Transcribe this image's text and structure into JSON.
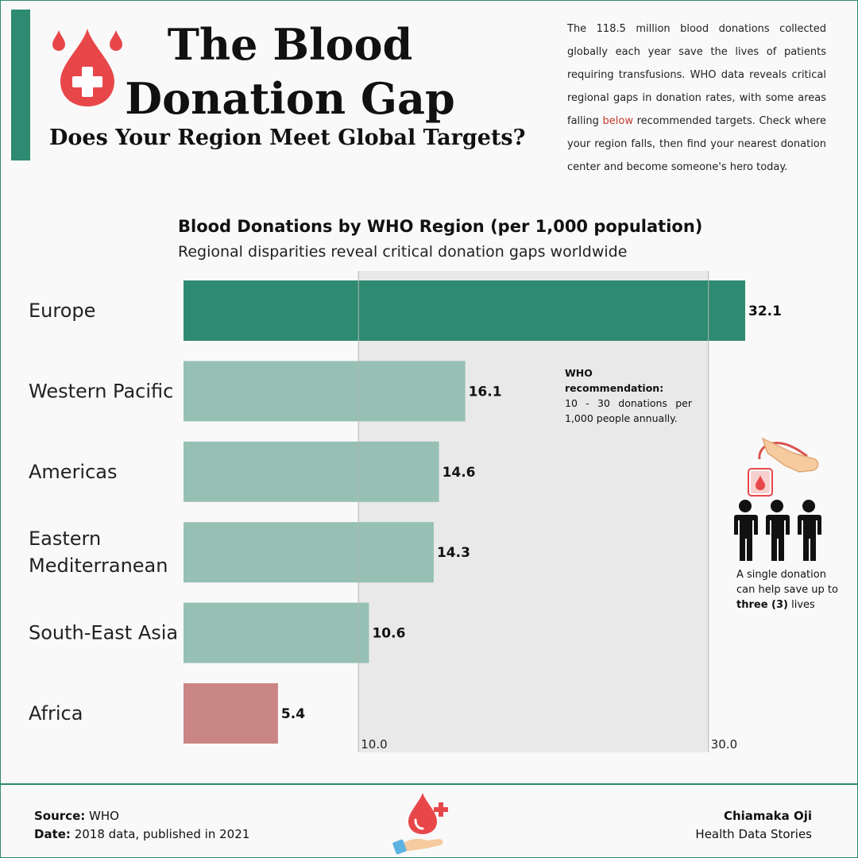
{
  "header": {
    "title_line1": "The Blood",
    "title_line2": "Donation Gap",
    "subtitle": "Does Your Region Meet Global Targets?",
    "intro_before": "The 118.5 million blood donations collected globally each year save the lives of patients requiring transfusions. WHO data reveals critical regional gaps in donation rates, with some areas falling ",
    "intro_highlight": "below",
    "intro_after": " recommended targets. Check where your region falls, then find your nearest donation center and become someone's hero today."
  },
  "colors": {
    "brand_green": "#2e8a70",
    "light_green": "#96c0b4",
    "africa_red": "#c98684",
    "blood_red": "#e8474a",
    "band_gray": "#e9e9e9"
  },
  "chart_data": {
    "type": "bar",
    "orientation": "horizontal",
    "title": "Blood Donations by WHO Region (per 1,000 population)",
    "subtitle": "Regional disparities reveal critical donation gaps worldwide",
    "categories": [
      "Europe",
      "Western Pacific",
      "Americas",
      "Eastern Mediterranean",
      "South-East Asia",
      "Africa"
    ],
    "category_lines": [
      [
        "Europe"
      ],
      [
        "Western Pacific"
      ],
      [
        "Americas"
      ],
      [
        "Eastern",
        "Mediterranean"
      ],
      [
        "South-East Asia"
      ],
      [
        "Africa"
      ]
    ],
    "values": [
      32.1,
      16.1,
      14.6,
      14.3,
      10.6,
      5.4
    ],
    "value_labels": [
      "32.1",
      "16.1",
      "14.6",
      "14.3",
      "10.6",
      "5.4"
    ],
    "xlim": [
      0,
      32.1
    ],
    "recommended_range": [
      10,
      30
    ],
    "range_tick_labels": [
      "10.0",
      "30.0"
    ],
    "annotation_title": "WHO recommendation:",
    "annotation_text": "10 - 30 donations per 1,000 people annually."
  },
  "sidebar_note": {
    "line_before": "A single donation can help save up to ",
    "bold": "three (3)",
    "line_after": " lives"
  },
  "footer": {
    "source_label": "Source:",
    "source_value": " WHO",
    "date_label": "Date:",
    "date_value": " 2018 data, published in 2021",
    "author": "Chiamaka Oji",
    "org": "Health Data Stories"
  },
  "icons": {
    "top_logo": "blood-drop-cross-icon",
    "donation": "blood-bag-arm-icon",
    "people": "three-people-icon",
    "bottom_logo": "hand-blood-drop-icon"
  }
}
